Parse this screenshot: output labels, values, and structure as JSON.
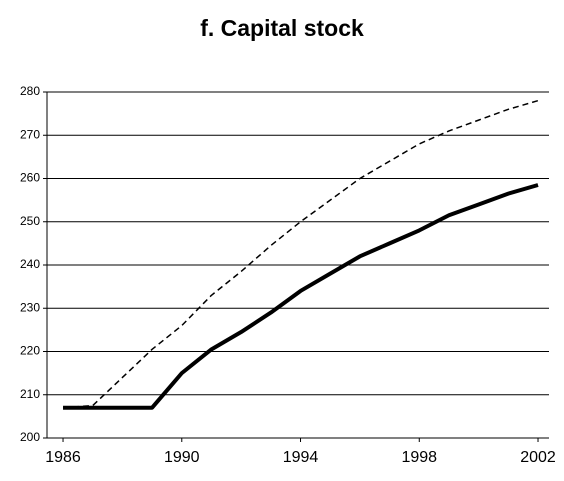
{
  "chart_data": {
    "type": "line",
    "title": "f. Capital stock",
    "x": [
      1986,
      1987,
      1988,
      1989,
      1990,
      1991,
      1992,
      1993,
      1994,
      1995,
      1996,
      1997,
      1998,
      1999,
      2000,
      2001,
      2002
    ],
    "series": [
      {
        "color": "#000000",
        "dashed": false,
        "width": 4,
        "values": [
          207,
          207,
          207,
          207,
          215,
          220.5,
          224.5,
          229,
          234,
          238,
          242,
          245,
          248,
          251.5,
          254,
          256.5,
          258.5
        ]
      },
      {
        "color": "#000000",
        "dashed": true,
        "width": 1.5,
        "values": [
          207,
          207.5,
          214,
          220.5,
          226,
          233,
          238.5,
          244.5,
          250,
          255,
          260,
          264,
          268,
          271,
          273.5,
          276,
          278
        ]
      }
    ],
    "xlim": [
      1985.46,
      2002.37
    ],
    "xticks": [
      1986,
      1990,
      1994,
      1998,
      2002
    ],
    "ylim": [
      200,
      280
    ],
    "yticks": [
      200,
      210,
      220,
      230,
      240,
      250,
      260,
      270,
      280
    ],
    "grid": true
  }
}
